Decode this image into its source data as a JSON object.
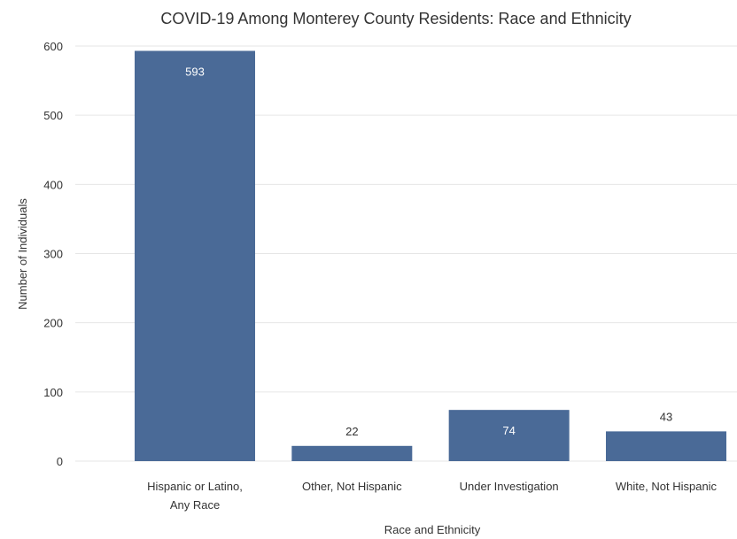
{
  "chart_data": {
    "type": "bar",
    "title": "COVID-19 Among Monterey County Residents: Race and Ethnicity",
    "xlabel": "Race and Ethnicity",
    "ylabel": "Number of Individuals",
    "categories": [
      "Hispanic or Latino, Any Race",
      "Other, Not Hispanic",
      "Under Investigation",
      "White, Not Hispanic"
    ],
    "values": [
      593,
      22,
      74,
      43
    ],
    "ylim": [
      0,
      600
    ],
    "yticks": [
      0,
      100,
      200,
      300,
      400,
      500,
      600
    ],
    "grid": true,
    "legend": "none",
    "bar_color": "#4a6a97",
    "inside_label_color": "#ffffff",
    "outside_label_color": "#333333"
  }
}
